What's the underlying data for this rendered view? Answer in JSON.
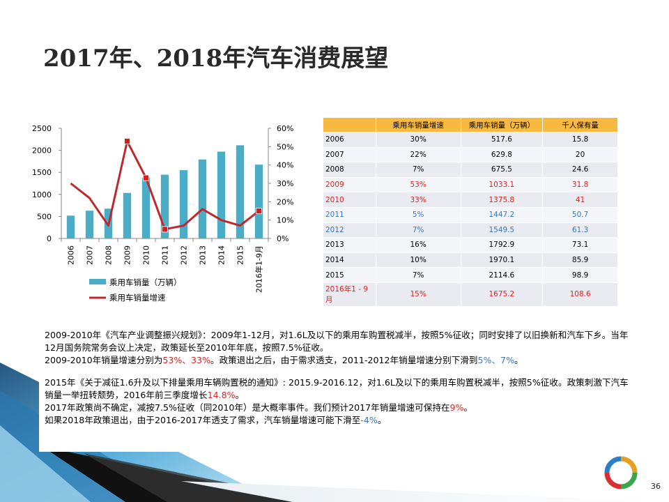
{
  "title": "2017年、2018年汽车消费展望",
  "chart_data": {
    "type": "bar+line",
    "categories": [
      "2006",
      "2007",
      "2008",
      "2009",
      "2010",
      "2011",
      "2012",
      "2013",
      "2014",
      "2015",
      "2016年1-9月"
    ],
    "series": [
      {
        "name": "乘用车销量（万辆）",
        "kind": "bar",
        "axis": "left",
        "color": "#4bacc6",
        "values": [
          517.6,
          629.8,
          675.5,
          1033.1,
          1375.8,
          1447.2,
          1549.5,
          1792.9,
          1970.1,
          2114.6,
          1675.2
        ]
      },
      {
        "name": "乘用车销量增速",
        "kind": "line",
        "axis": "right",
        "color": "#c0272d",
        "values": [
          30,
          22,
          7,
          53,
          33,
          5,
          7,
          16,
          10,
          7,
          15
        ]
      }
    ],
    "left_axis": {
      "min": 0,
      "max": 2500,
      "ticks": [
        "0",
        "500",
        "1000",
        "1500",
        "2000",
        "2500"
      ]
    },
    "right_axis": {
      "min": 0,
      "max": 60,
      "ticks": [
        "0%",
        "10%",
        "20%",
        "30%",
        "40%",
        "50%",
        "60%"
      ]
    },
    "highlighted_markers": [
      3,
      4,
      5,
      10
    ],
    "legend_position": "bottom-left"
  },
  "table": {
    "headers": [
      "",
      "乘用车销量增速",
      "乘用车销量（万辆）",
      "千人保有量"
    ],
    "rows": [
      {
        "year": "2006",
        "growth": "30%",
        "sales": "517.6",
        "per1000": "15.8",
        "style": ""
      },
      {
        "year": "2007",
        "growth": "22%",
        "sales": "629.8",
        "per1000": "20",
        "style": ""
      },
      {
        "year": "2008",
        "growth": "7%",
        "sales": "675.5",
        "per1000": "24.6",
        "style": ""
      },
      {
        "year": "2009",
        "growth": "53%",
        "sales": "1033.1",
        "per1000": "31.8",
        "style": "red"
      },
      {
        "year": "2010",
        "growth": "33%",
        "sales": "1375.8",
        "per1000": "41",
        "style": "red"
      },
      {
        "year": "2011",
        "growth": "5%",
        "sales": "1447.2",
        "per1000": "50.7",
        "style": "blue"
      },
      {
        "year": "2012",
        "growth": "7%",
        "sales": "1549.5",
        "per1000": "61.3",
        "style": "blue"
      },
      {
        "year": "2013",
        "growth": "16%",
        "sales": "1792.9",
        "per1000": "73.1",
        "style": ""
      },
      {
        "year": "2014",
        "growth": "10%",
        "sales": "1970.1",
        "per1000": "85.9",
        "style": ""
      },
      {
        "year": "2015",
        "growth": "7%",
        "sales": "2114.6",
        "per1000": "98.9",
        "style": ""
      },
      {
        "year": "2016年1 - 9月",
        "growth": "15%",
        "sales": "1675.2",
        "per1000": "108.6",
        "style": "red"
      }
    ]
  },
  "text": {
    "p1_a": "2009-2010年《汽车产业调整振兴规划》：2009年1-12月，对1.6L及以下的乘用车购置税减半，按照5%征收；同时安排了以旧换新和汽车下乡。当年12月国务院常务会议上决定，政策延长至2010年年底，按照7.5%征收。",
    "p2_a": "2009-2010年销量增速分别为",
    "p2_red": "53%、33%",
    "p2_b": "。政策退出之后，由于需求透支，2011-2012年销量增速分别下滑到",
    "p2_blue": "5%、7%",
    "p2_c": "。",
    "p3_a": "2015年《关于减征1.6升及以下排量乘用车辆购置税的通知》: 2015.9-2016.12，对1.6L及以下的乘用车购置税减半，按照5%征收。政策刺激下汽车销量一举扭转颓势，2016年前三季度增长",
    "p3_red": "14.8%",
    "p3_b": "。",
    "p4_a": "2017年政策尚不确定，减按7.5%征收（同2010年）是大概率事件。我们预计2017年销量增速可保持在",
    "p4_red": "9%",
    "p4_b": "。",
    "p5_a": "如果2018年政策退出，由于2016-2017年透支了需求，汽车销量增速可能下滑至",
    "p5_blue": "-4%",
    "p5_b": "。"
  },
  "page_number": "36"
}
